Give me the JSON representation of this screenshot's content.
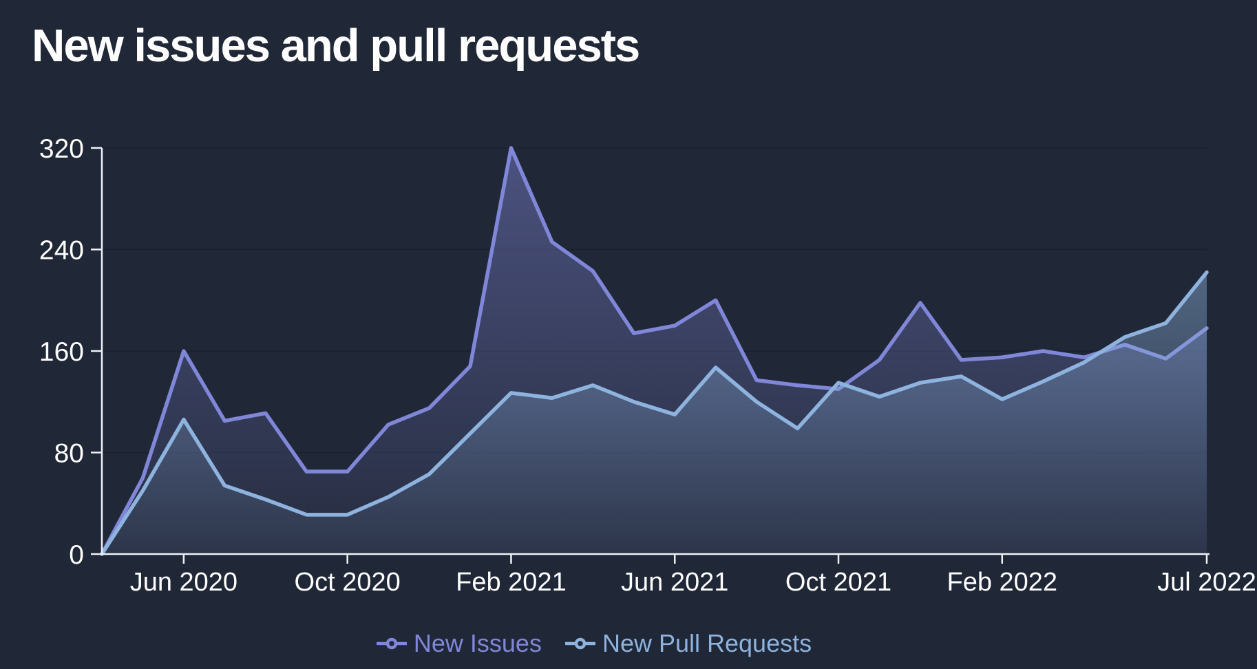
{
  "title": "New issues and pull requests",
  "colors": {
    "background": "#202736",
    "axis": "#eef1f7",
    "tick_text": "#ffffff",
    "gridline": "#1a2130",
    "new_issues": "#8187d8",
    "new_pull_requests": "#8db3de"
  },
  "chart_data": {
    "type": "area",
    "title": "New issues and pull requests",
    "x": [
      "Apr 2020",
      "May 2020",
      "Jun 2020",
      "Jul 2020",
      "Aug 2020",
      "Sep 2020",
      "Oct 2020",
      "Nov 2020",
      "Dec 2020",
      "Jan 2021",
      "Feb 2021",
      "Mar 2021",
      "Apr 2021",
      "May 2021",
      "Jun 2021",
      "Jul 2021",
      "Aug 2021",
      "Sep 2021",
      "Oct 2021",
      "Nov 2021",
      "Dec 2021",
      "Jan 2022",
      "Feb 2022",
      "Mar 2022",
      "Apr 2022",
      "May 2022",
      "Jun 2022",
      "Jul 2022"
    ],
    "series": [
      {
        "name": "New Issues",
        "color": "#8187d8",
        "values": [
          0,
          60,
          160,
          105,
          111,
          65,
          65,
          102,
          115,
          148,
          320,
          246,
          223,
          174,
          180,
          200,
          137,
          133,
          130,
          153,
          198,
          153,
          155,
          160,
          155,
          165,
          154,
          178
        ]
      },
      {
        "name": "New Pull Requests",
        "color": "#8db3de",
        "values": [
          0,
          50,
          106,
          54,
          43,
          31,
          31,
          45,
          63,
          95,
          127,
          123,
          133,
          120,
          110,
          147,
          120,
          99,
          135,
          124,
          135,
          140,
          122,
          136,
          151,
          171,
          182,
          222
        ]
      }
    ],
    "ylim": [
      0,
      320
    ],
    "y_ticks": [
      0,
      80,
      160,
      240,
      320
    ],
    "x_tick_indices": [
      2,
      6,
      10,
      14,
      18,
      22,
      27
    ],
    "x_tick_labels": [
      "Jun 2020",
      "Oct 2020",
      "Feb 2021",
      "Jun 2021",
      "Oct 2021",
      "Feb 2022",
      "Jul 2022"
    ],
    "grid": "horizontal",
    "legend_position": "bottom"
  },
  "legend": {
    "items": [
      {
        "label": "New Issues"
      },
      {
        "label": "New Pull Requests"
      }
    ]
  }
}
